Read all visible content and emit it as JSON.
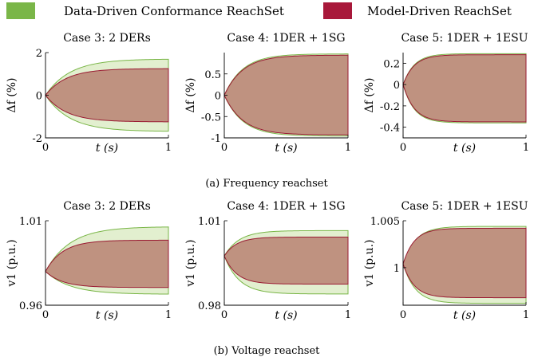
{
  "legend": {
    "items": [
      {
        "label": "Data-Driven Conformance ReachSet",
        "color": "#7ab648"
      },
      {
        "label": "Model-Driven ReachSet",
        "color": "#a8183a"
      }
    ],
    "placement": "top"
  },
  "captions": [
    "(a) Frequency reachset",
    "(b) Voltage reachset"
  ],
  "style": {
    "outer_fill": "#e2efcf",
    "outer_stroke": "#7ab648",
    "inner_fill": "#bf9280",
    "inner_stroke": "#9a1a32"
  },
  "chart_data": [
    {
      "type": "area",
      "title": "Case 3: 2 DERs",
      "xlabel": "t (s)",
      "ylabel": "Δf (%)",
      "xlim": [
        0,
        1
      ],
      "ylim": [
        -2,
        2
      ],
      "xticks": [
        "0",
        "1"
      ],
      "yticks": [
        "-2",
        "0",
        "2"
      ],
      "yticks_values": [
        -2,
        0,
        2
      ],
      "series": [
        {
          "name": "Data-Driven Conformance ReachSet",
          "start": 0,
          "upper": 1.7,
          "lower": -1.7,
          "tau": 0.2
        },
        {
          "name": "Model-Driven ReachSet",
          "start": 0,
          "upper": 1.25,
          "lower": -1.25,
          "tau": 0.17
        }
      ]
    },
    {
      "type": "area",
      "title": "Case 4: 1DER + 1SG",
      "xlabel": "t (s)",
      "ylabel": "Δf (%)",
      "xlim": [
        0,
        1
      ],
      "ylim": [
        -1,
        1
      ],
      "xticks": [
        "0",
        "1"
      ],
      "yticks": [
        "-1",
        "-0.5",
        "0",
        "0.5"
      ],
      "yticks_values": [
        -1,
        -0.5,
        0,
        0.5
      ],
      "series": [
        {
          "name": "Data-Driven Conformance ReachSet",
          "start": 0,
          "upper": 0.97,
          "lower": -0.96,
          "tau": 0.15
        },
        {
          "name": "Model-Driven ReachSet",
          "start": 0,
          "upper": 0.94,
          "lower": -0.93,
          "tau": 0.15
        }
      ]
    },
    {
      "type": "area",
      "title": "Case 5: 1DER + 1ESU",
      "xlabel": "t (s)",
      "ylabel": "Δf (%)",
      "xlim": [
        0,
        1
      ],
      "ylim": [
        -0.5,
        0.3
      ],
      "xticks": [
        "0",
        "1"
      ],
      "yticks": [
        "-0.4",
        "-0.2",
        "0",
        "0.2"
      ],
      "yticks_values": [
        -0.4,
        -0.2,
        0,
        0.2
      ],
      "series": [
        {
          "name": "Data-Driven Conformance ReachSet",
          "start": 0,
          "upper": 0.29,
          "lower": -0.36,
          "tau": 0.09
        },
        {
          "name": "Model-Driven ReachSet",
          "start": 0,
          "upper": 0.28,
          "lower": -0.35,
          "tau": 0.09
        }
      ]
    },
    {
      "type": "area",
      "title": "Case 3: 2 DERs",
      "xlabel": "t (s)",
      "ylabel": "v1 (p.u.)",
      "xlim": [
        0,
        1
      ],
      "ylim": [
        0.96,
        1.01
      ],
      "xticks": [
        "0",
        "1"
      ],
      "yticks": [
        "0.96",
        "1.01"
      ],
      "yticks_values": [
        0.96,
        1.01
      ],
      "series": [
        {
          "name": "Data-Driven Conformance ReachSet",
          "start": 0.98,
          "upper": 1.0065,
          "lower": 0.9665,
          "tau": 0.2
        },
        {
          "name": "Model-Driven ReachSet",
          "start": 0.98,
          "upper": 0.9985,
          "lower": 0.9705,
          "tau": 0.14
        }
      ]
    },
    {
      "type": "area",
      "title": "Case 4: 1DER + 1SG",
      "xlabel": "t (s)",
      "ylabel": "v1 (p.u.)",
      "xlim": [
        0,
        1
      ],
      "ylim": [
        0.98,
        1.01
      ],
      "xticks": [
        "0",
        "1"
      ],
      "yticks": [
        "0.98",
        "1.01"
      ],
      "yticks_values": [
        0.98,
        1.01
      ],
      "series": [
        {
          "name": "Data-Driven Conformance ReachSet",
          "start": 0.9975,
          "upper": 1.0065,
          "lower": 0.984,
          "tau": 0.12
        },
        {
          "name": "Model-Driven ReachSet",
          "start": 0.9975,
          "upper": 1.0042,
          "lower": 0.9875,
          "tau": 0.1
        }
      ]
    },
    {
      "type": "area",
      "title": "Case 5: 1DER + 1ESU",
      "xlabel": "t (s)",
      "ylabel": "v1 (p.u.)",
      "xlim": [
        0,
        1
      ],
      "ylim": [
        0.996,
        1.005
      ],
      "xticks": [
        "0",
        "1"
      ],
      "yticks": [
        "1",
        "1.005"
      ],
      "yticks_values": [
        1,
        1.005
      ],
      "series": [
        {
          "name": "Data-Driven Conformance ReachSet",
          "start": 1.0004,
          "upper": 1.0044,
          "lower": 0.9962,
          "tau": 0.1
        },
        {
          "name": "Model-Driven ReachSet",
          "start": 1.0004,
          "upper": 1.0042,
          "lower": 0.9968,
          "tau": 0.09
        }
      ]
    }
  ]
}
